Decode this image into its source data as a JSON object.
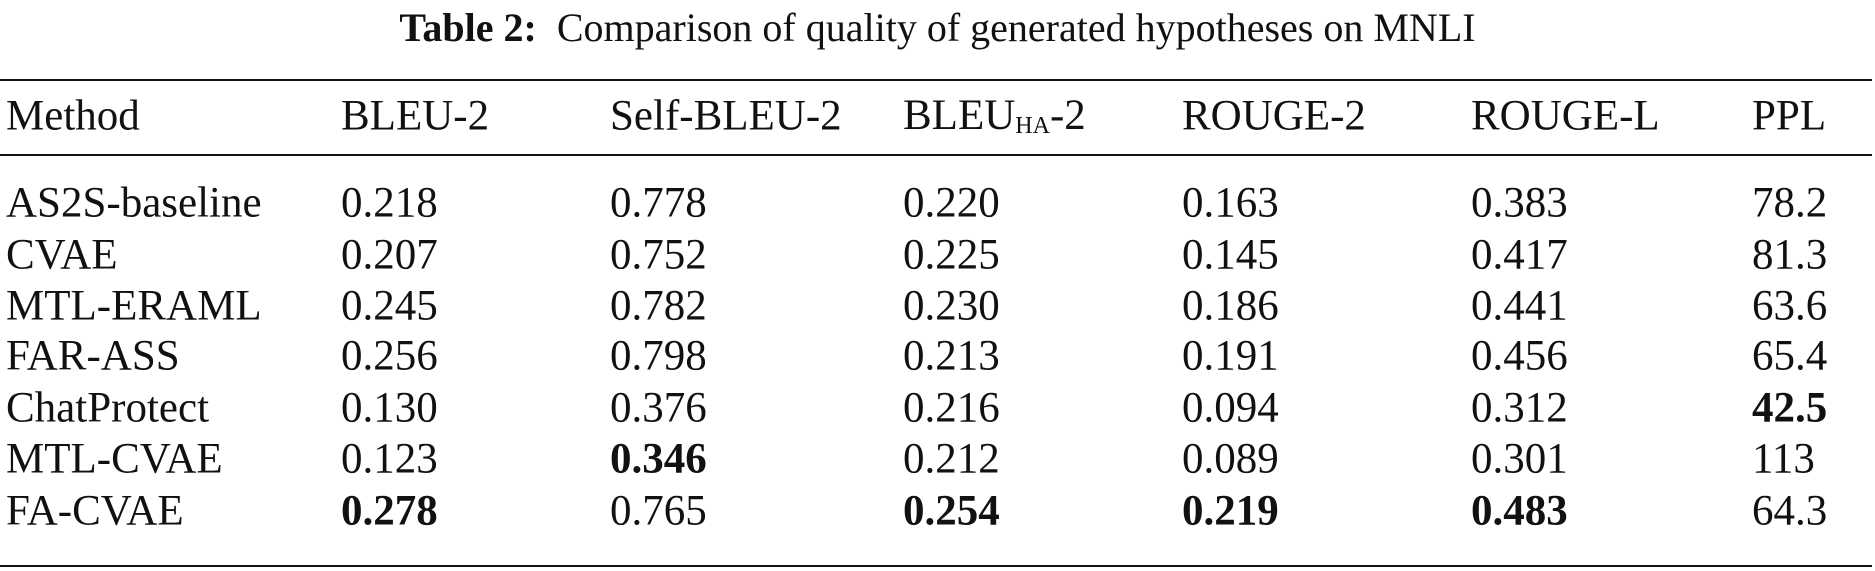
{
  "caption": {
    "label": "Table 2:",
    "text": "Comparison of quality of generated hypotheses on MNLI"
  },
  "table": {
    "header": [
      "Method",
      "BLEU-2",
      "Self-BLEU-2",
      {
        "text": "BLEU",
        "sub": "HA",
        "suffix": "-2"
      },
      "ROUGE-2",
      "ROUGE-L",
      "PPL"
    ],
    "rows": [
      [
        "AS2S-baseline",
        "0.218",
        "0.778",
        "0.220",
        "0.163",
        "0.383",
        "78.2"
      ],
      [
        "CVAE",
        "0.207",
        "0.752",
        "0.225",
        "0.145",
        "0.417",
        "81.3"
      ],
      [
        "MTL-ERAML",
        "0.245",
        "0.782",
        "0.230",
        "0.186",
        "0.441",
        "63.6"
      ],
      [
        "FAR-ASS",
        "0.256",
        "0.798",
        "0.213",
        "0.191",
        "0.456",
        "65.4"
      ],
      [
        "ChatProtect",
        "0.130",
        "0.376",
        "0.216",
        "0.094",
        "0.312",
        {
          "text": "42.5",
          "bold": true
        }
      ],
      [
        "MTL-CVAE",
        "0.123",
        {
          "text": "0.346",
          "bold": true
        },
        "0.212",
        "0.089",
        "0.301",
        "113"
      ],
      [
        "FA-CVAE",
        {
          "text": "0.278",
          "bold": true
        },
        "0.765",
        {
          "text": "0.254",
          "bold": true
        },
        {
          "text": "0.219",
          "bold": true
        },
        {
          "text": "0.483",
          "bold": true
        },
        "64.3"
      ]
    ]
  }
}
